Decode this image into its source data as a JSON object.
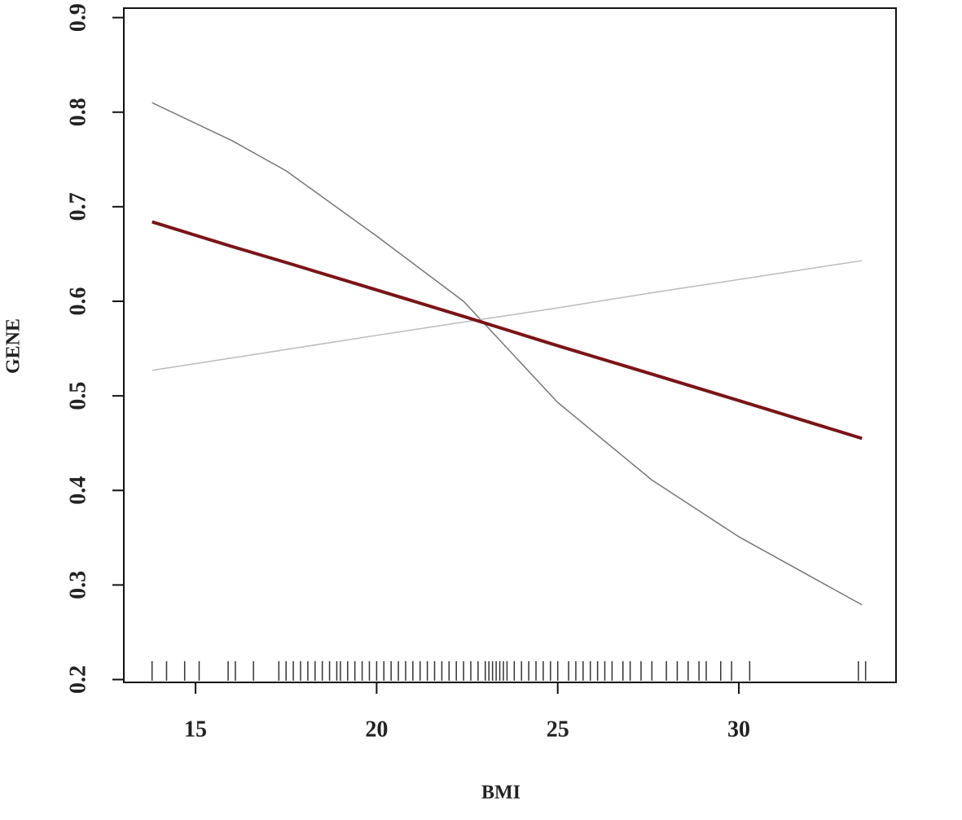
{
  "chart_data": {
    "type": "line",
    "xlabel": "BMI",
    "ylabel": "GENE",
    "x": [
      13.8,
      16,
      17.5,
      20,
      22.4,
      25,
      27.6,
      30,
      33.4
    ],
    "series": [
      {
        "color": "#777777",
        "width": 1.5,
        "values": [
          0.81,
          0.77,
          0.738,
          0.669,
          0.6,
          0.493,
          0.411,
          0.351,
          0.279
        ]
      },
      {
        "color": "#bbbbbb",
        "width": 1.5,
        "values": [
          0.527,
          0.54,
          0.549,
          0.564,
          0.578,
          0.593,
          0.609,
          0.623,
          0.643
        ]
      },
      {
        "color": "#7a1418",
        "width": 4,
        "values": [
          0.684,
          0.658,
          0.641,
          0.612,
          0.584,
          0.553,
          0.523,
          0.495,
          0.455
        ]
      }
    ],
    "rug": [
      13.8,
      14.2,
      14.7,
      15.1,
      15.9,
      16.1,
      16.6,
      17.3,
      17.5,
      17.7,
      17.9,
      18.1,
      18.3,
      18.5,
      18.7,
      18.9,
      19.0,
      19.2,
      19.4,
      19.6,
      19.8,
      20.0,
      20.2,
      20.4,
      20.6,
      20.8,
      21.0,
      21.2,
      21.4,
      21.6,
      21.8,
      22.0,
      22.2,
      22.4,
      22.6,
      22.8,
      23.0,
      23.1,
      23.2,
      23.3,
      23.4,
      23.5,
      23.6,
      23.8,
      24.0,
      24.2,
      24.4,
      24.6,
      24.8,
      25.0,
      25.3,
      25.5,
      25.7,
      25.9,
      26.1,
      26.3,
      26.5,
      26.8,
      27.0,
      27.3,
      27.6,
      28.0,
      28.3,
      28.6,
      28.9,
      29.1,
      29.5,
      29.8,
      30.3,
      33.3,
      33.5
    ],
    "xlim": [
      13.02,
      34.34
    ],
    "xticks": [
      15,
      20,
      25,
      30
    ],
    "ylim": [
      0.197,
      0.91
    ],
    "yticks": [
      0.2,
      0.3,
      0.4,
      0.5,
      0.6,
      0.7,
      0.8,
      0.9
    ]
  }
}
